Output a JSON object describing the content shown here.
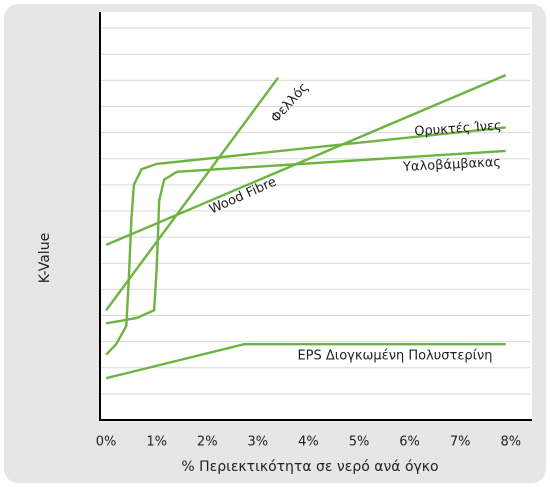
{
  "chart_data": {
    "type": "line",
    "x_label": "% Περιεκτικότητα σε νερό ανά όγκο",
    "y_label": "K-Value",
    "xlim": [
      -0.12,
      8.38
    ],
    "xticks": [
      {
        "value": 0,
        "label": "0%"
      },
      {
        "value": 1,
        "label": "1%"
      },
      {
        "value": 2,
        "label": "2%"
      },
      {
        "value": 3,
        "label": "3%"
      },
      {
        "value": 4,
        "label": "4%"
      },
      {
        "value": 5,
        "label": "5%"
      },
      {
        "value": 6,
        "label": "6%"
      },
      {
        "value": 7,
        "label": "7%"
      },
      {
        "value": 8,
        "label": "8%"
      }
    ],
    "ylim": [
      0,
      15.5
    ],
    "yticks": [
      1,
      2,
      3,
      4,
      5,
      6,
      7,
      8,
      9,
      10,
      11,
      12,
      13,
      14,
      15
    ],
    "grid": true,
    "series": [
      {
        "name": "Φελλός",
        "color": "#6db33f",
        "x": [
          0,
          3.4
        ],
        "values": [
          4.2,
          13.1
        ]
      },
      {
        "name": "Wood Fibre",
        "color": "#6db33f",
        "x": [
          0,
          7.9
        ],
        "values": [
          6.7,
          13.2
        ]
      },
      {
        "name": "Ορυκτές Ίνες",
        "color": "#6db33f",
        "x": [
          0,
          0.2,
          0.4,
          0.45,
          0.5,
          0.55,
          0.7,
          1.0,
          7.9
        ],
        "values": [
          2.5,
          2.9,
          3.6,
          5.4,
          7.7,
          9.0,
          9.6,
          9.8,
          11.2
        ]
      },
      {
        "name": "Υαλοβάμβακας",
        "color": "#6db33f",
        "x": [
          0,
          0.6,
          0.95,
          1.0,
          1.05,
          1.15,
          1.4,
          7.9
        ],
        "values": [
          3.7,
          3.9,
          4.2,
          5.8,
          8.4,
          9.2,
          9.5,
          10.3
        ]
      },
      {
        "name": "EPS Διογκωμένη Πολυστερίνη",
        "color": "#6db33f",
        "x": [
          0,
          2.73,
          7.9
        ],
        "values": [
          1.6,
          2.9,
          2.9
        ]
      }
    ]
  }
}
